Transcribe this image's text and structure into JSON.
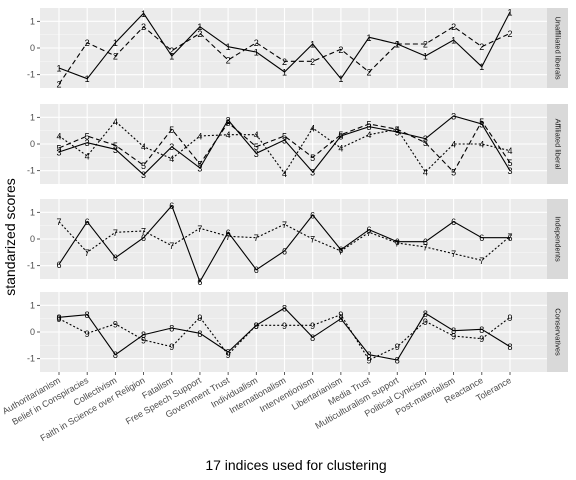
{
  "chart_data": {
    "type": "line",
    "xlabel": "17 indices used for clustering",
    "ylabel": "standarized scores",
    "ylim": [
      -1.5,
      1.5
    ],
    "yticks": [
      -1,
      0,
      1
    ],
    "grid": true,
    "categories": [
      "Authoritarianism",
      "Belief in Conspiracies",
      "Collectivism",
      "Faith in Science over Religion",
      "Fatalism",
      "Free Speech Support",
      "Government Trust",
      "Individualism",
      "Internationalism",
      "Interventionism",
      "Libertarianism",
      "Media Trust",
      "Multiculturalism support",
      "Political Cynicism",
      "Post-materialism",
      "Reactance",
      "Tolerance"
    ],
    "panels": [
      {
        "strip": "Unaffiliated liberals",
        "series": [
          {
            "marker": "1",
            "style": "solid",
            "values": [
              -0.75,
              -1.15,
              0.2,
              1.3,
              -0.3,
              0.8,
              0.05,
              -0.15,
              -0.9,
              0.15,
              -1.15,
              0.4,
              0.15,
              -0.3,
              0.3,
              -0.7,
              1.35
            ]
          },
          {
            "marker": "2",
            "style": "dashed",
            "values": [
              -1.35,
              0.2,
              -0.3,
              0.8,
              -0.1,
              0.55,
              -0.45,
              0.2,
              -0.5,
              -0.5,
              -0.05,
              -0.9,
              0.15,
              0.15,
              0.8,
              0.05,
              0.55
            ]
          }
        ]
      },
      {
        "strip": "Affiliated liberal",
        "series": [
          {
            "marker": "3",
            "style": "solid",
            "values": [
              -0.3,
              0.05,
              -0.2,
              -1.15,
              -0.1,
              -0.9,
              0.9,
              -0.35,
              0.15,
              -1.05,
              0.3,
              0.65,
              0.45,
              0.2,
              1.05,
              0.75,
              -1.0
            ]
          },
          {
            "marker": "4",
            "style": "dotted",
            "values": [
              0.3,
              -0.45,
              0.85,
              -0.1,
              -0.55,
              0.3,
              0.35,
              0.35,
              -1.1,
              0.6,
              -0.15,
              0.35,
              0.55,
              -1.05,
              0.0,
              0.0,
              -0.25
            ]
          },
          {
            "marker": "5",
            "style": "dashed",
            "values": [
              -0.15,
              0.3,
              -0.05,
              -0.8,
              0.55,
              -0.75,
              0.8,
              -0.1,
              0.3,
              -0.5,
              0.35,
              0.75,
              0.55,
              0.05,
              -1.05,
              0.85,
              -0.7
            ]
          }
        ]
      },
      {
        "strip": "Independents",
        "series": [
          {
            "marker": "6",
            "style": "solid",
            "values": [
              -0.95,
              0.65,
              -0.7,
              0.05,
              1.25,
              -1.6,
              0.25,
              -1.15,
              -0.45,
              0.9,
              -0.4,
              0.35,
              -0.1,
              -0.1,
              0.65,
              0.05,
              0.05
            ]
          },
          {
            "marker": "7",
            "style": "dotted",
            "values": [
              0.65,
              -0.5,
              0.25,
              0.3,
              -0.25,
              0.4,
              0.1,
              0.05,
              0.55,
              0.0,
              -0.45,
              0.25,
              -0.15,
              -0.3,
              -0.55,
              -0.8,
              0.1
            ]
          }
        ]
      },
      {
        "strip": "Conservatives",
        "series": [
          {
            "marker": "8",
            "style": "solid",
            "values": [
              0.55,
              0.65,
              -0.85,
              -0.1,
              0.15,
              -0.05,
              -0.75,
              0.25,
              0.9,
              -0.2,
              0.5,
              -0.85,
              -1.05,
              0.7,
              0.05,
              0.1,
              -0.55
            ]
          },
          {
            "marker": "9",
            "style": "dotted",
            "values": [
              0.5,
              -0.05,
              0.3,
              -0.3,
              -0.55,
              0.55,
              -0.85,
              0.25,
              0.25,
              0.25,
              0.65,
              -1.05,
              -0.55,
              0.4,
              -0.15,
              -0.25,
              0.55
            ]
          }
        ]
      }
    ]
  }
}
